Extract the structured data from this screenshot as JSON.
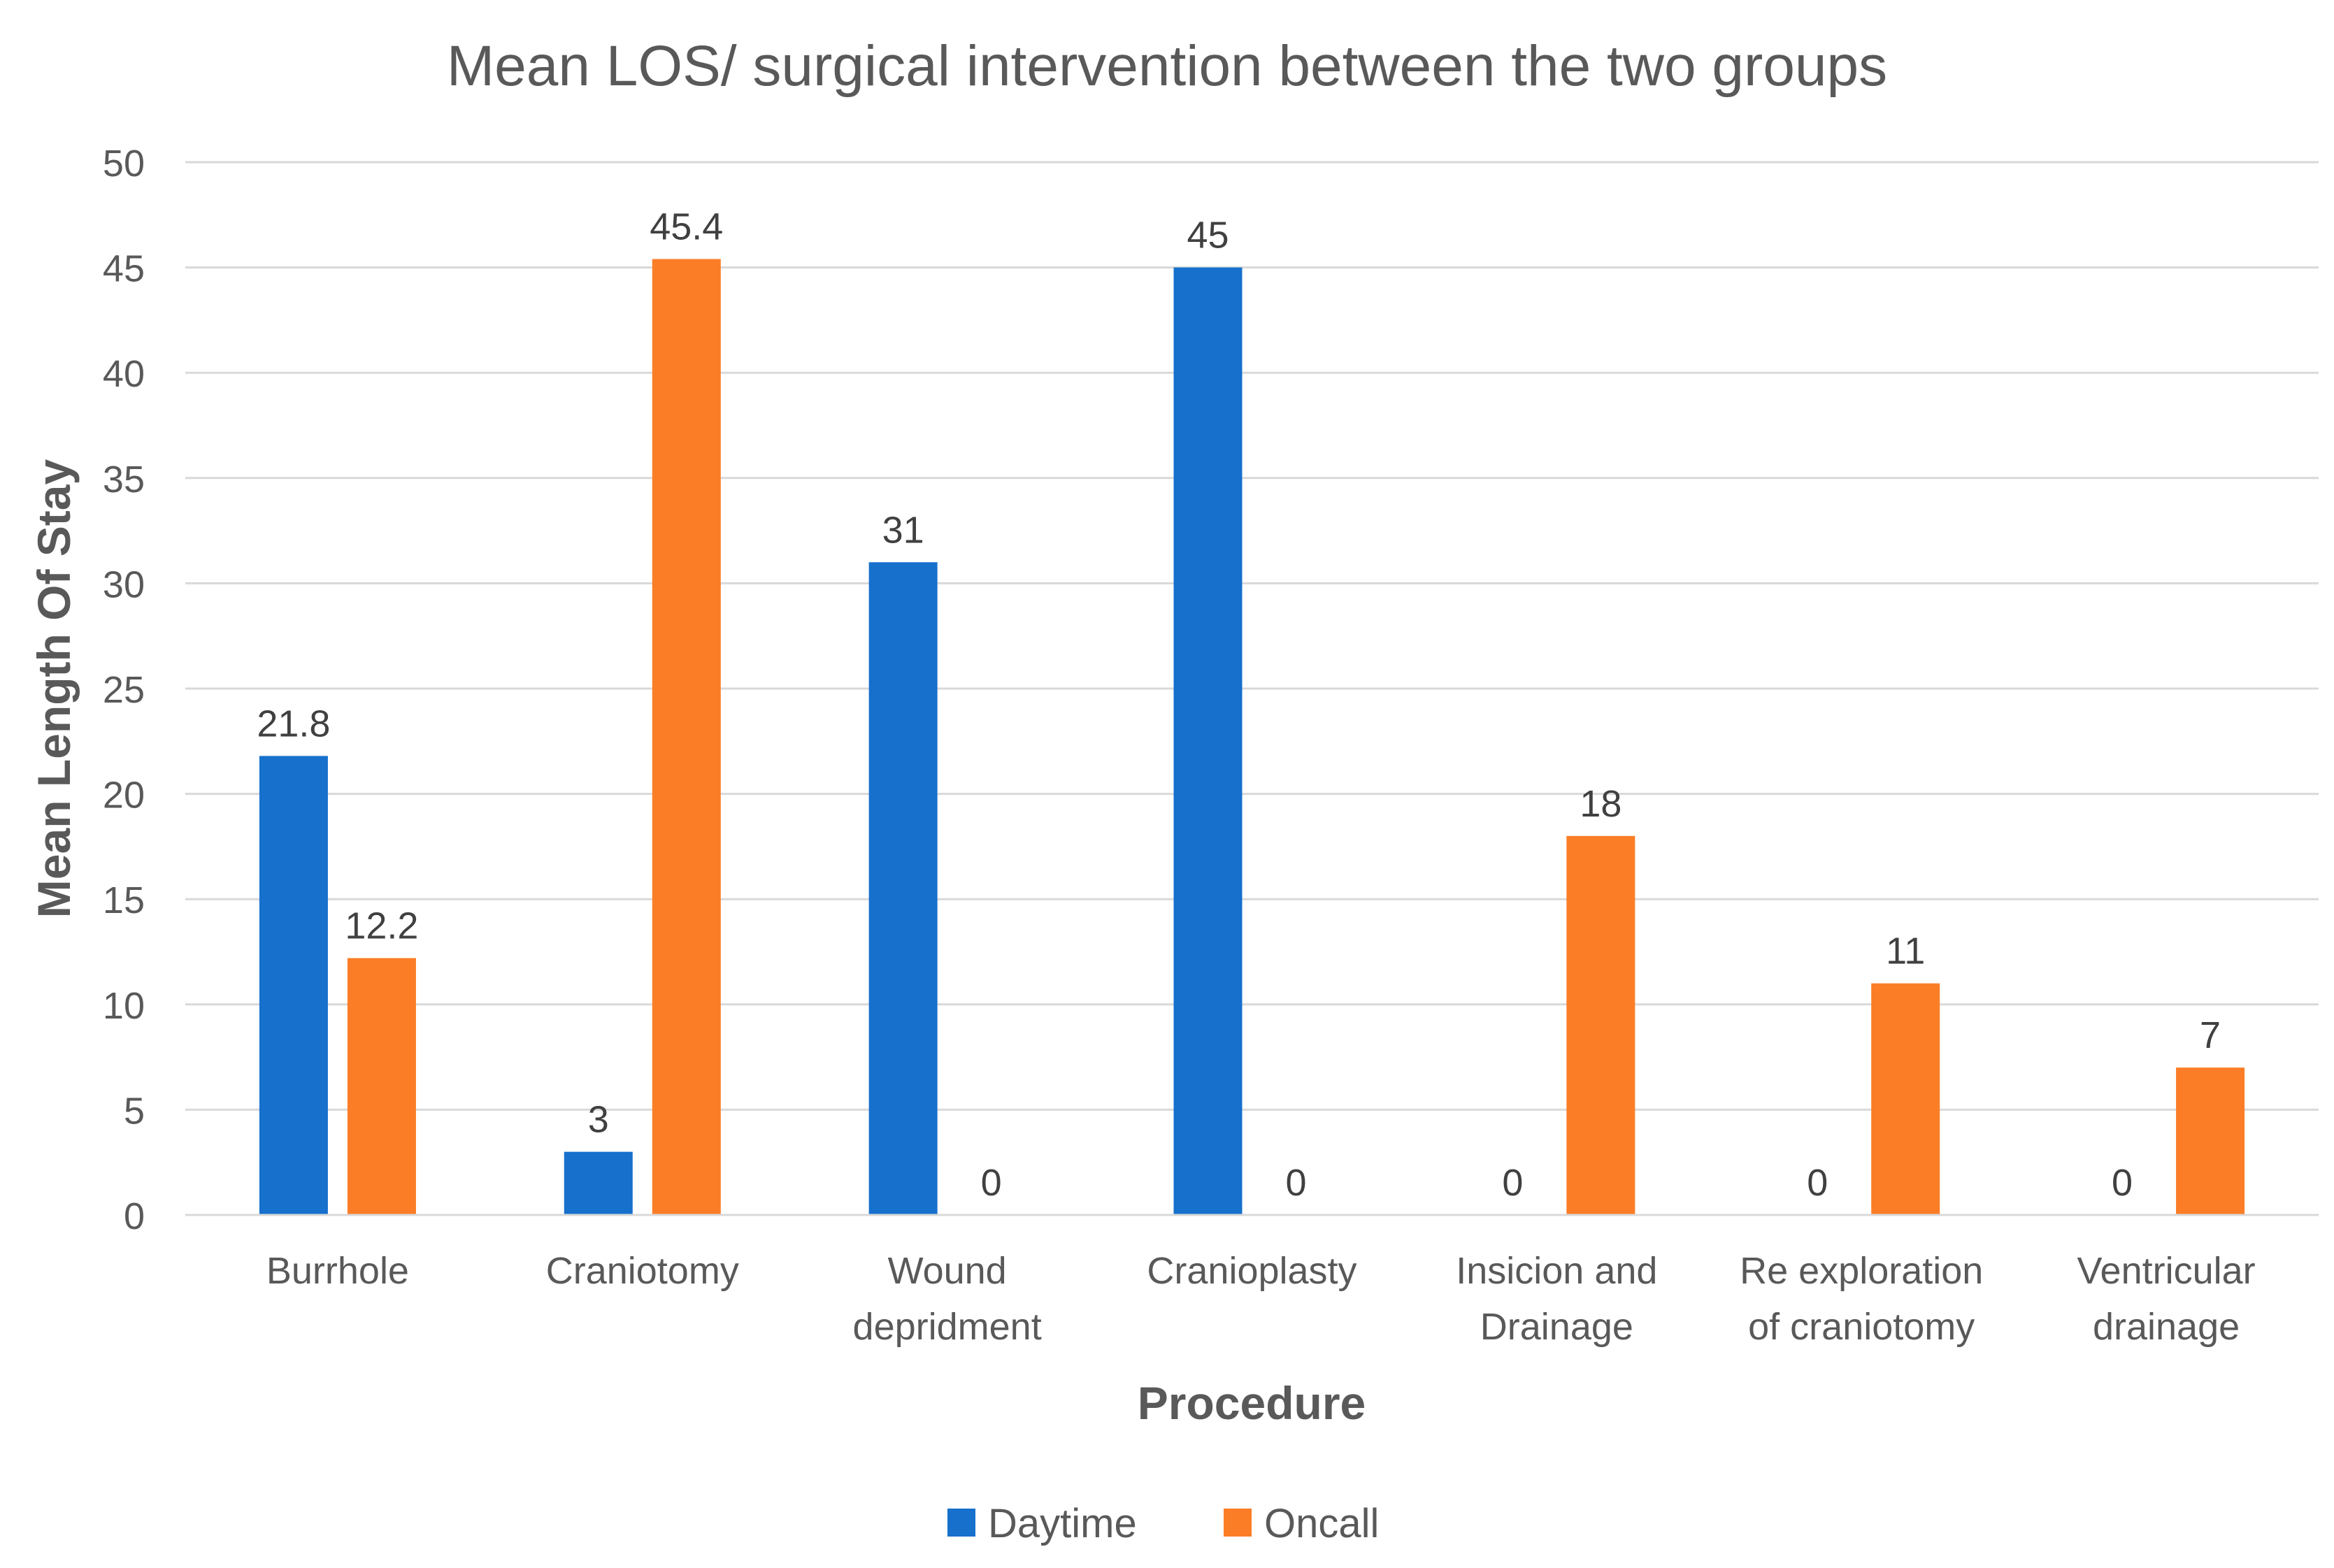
{
  "chart_data": {
    "type": "bar",
    "title": "Mean LOS/ surgical intervention between the two groups",
    "xlabel": "Procedure",
    "ylabel": "Mean Length Of Stay",
    "ylim": [
      0,
      50
    ],
    "yticks": [
      0,
      5,
      10,
      15,
      20,
      25,
      30,
      35,
      40,
      45,
      50
    ],
    "grid": true,
    "legend_position": "bottom",
    "categories": [
      [
        "Burrhole"
      ],
      [
        "Craniotomy"
      ],
      [
        "Wound",
        "depridment"
      ],
      [
        "Cranioplasty"
      ],
      [
        "Insicion and",
        "Drainage"
      ],
      [
        "Re exploration",
        "of craniotomy"
      ],
      [
        "Ventricular",
        "drainage"
      ]
    ],
    "series": [
      {
        "name": "Daytime",
        "color": "#1670CC",
        "values": [
          21.8,
          3,
          31,
          45,
          0,
          0,
          0
        ],
        "labels": [
          "21.8",
          "3",
          "31",
          "45",
          "0",
          "0",
          "0"
        ]
      },
      {
        "name": "Oncall",
        "color": "#FB7D26",
        "values": [
          12.2,
          45.4,
          0,
          0,
          18,
          11,
          7
        ],
        "labels": [
          "12.2",
          "45.4",
          "0",
          "0",
          "18",
          "11",
          "7"
        ]
      }
    ]
  }
}
